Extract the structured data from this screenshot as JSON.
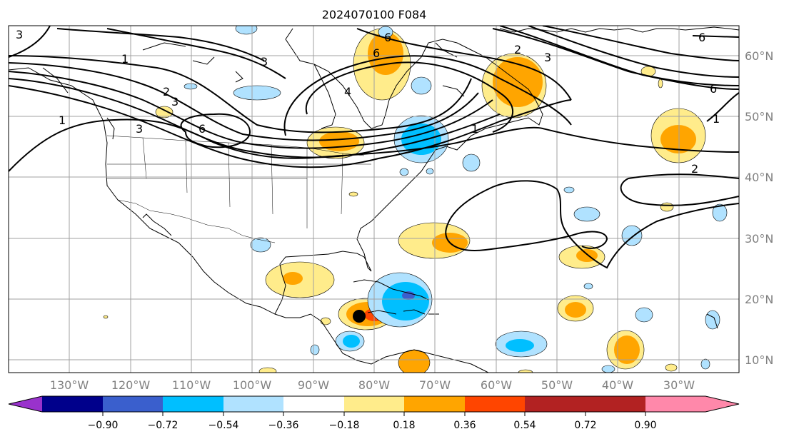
{
  "title": "2024070100 F084",
  "lon_labels": [
    "130°W",
    "120°W",
    "110°W",
    "100°W",
    "90°W",
    "80°W",
    "70°W",
    "60°W",
    "50°W",
    "40°W",
    "30°W"
  ],
  "lat_labels": [
    "60°N",
    "50°N",
    "40°N",
    "30°N",
    "20°N",
    "10°N"
  ],
  "colorbar": {
    "ticks": [
      "−0.90",
      "−0.72",
      "−0.54",
      "−0.36",
      "−0.18",
      "0.18",
      "0.36",
      "0.54",
      "0.72",
      "0.90"
    ],
    "colors": [
      "#9932cc",
      "#00008b",
      "#3a5fcd",
      "#00bfff",
      "#b0e2ff",
      "#ffffff",
      "#ffec8b",
      "#ffa500",
      "#ff4500",
      "#b22222",
      "#ff88aa"
    ]
  },
  "contour_labels": [
    "3",
    "1",
    "3",
    "2",
    "3",
    "6",
    "1",
    "3",
    "6",
    "2",
    "3",
    "6",
    "6",
    "1",
    "2",
    "6",
    "4",
    "1"
  ],
  "storm_marker": "black-dot"
}
